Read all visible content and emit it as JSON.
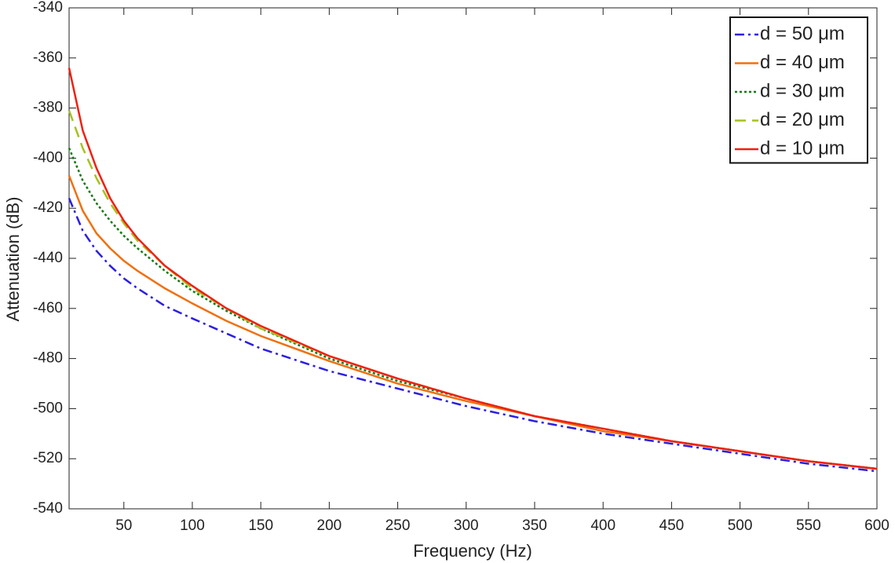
{
  "chart_data": {
    "type": "line",
    "x_label": "Frequency (Hz)",
    "y_label": "Attenuation (dB)",
    "x": [
      10,
      20,
      30,
      40,
      50,
      60,
      80,
      100,
      125,
      150,
      200,
      250,
      300,
      350,
      400,
      450,
      500,
      550,
      600
    ],
    "series": [
      {
        "name": "d = 50 μm",
        "color": "#2b1fe0",
        "style": "dashdot",
        "values": [
          -416,
          -429,
          -437,
          -443,
          -448,
          -452,
          -459,
          -464,
          -470,
          -476,
          -485,
          -492,
          -499,
          -505,
          -510,
          -514,
          -518,
          -522,
          -525
        ]
      },
      {
        "name": "d = 40 μm",
        "color": "#f07010",
        "style": "solid",
        "values": [
          -407,
          -421,
          -430,
          -436,
          -441,
          -445,
          -452,
          -458,
          -465,
          -471,
          -481,
          -490,
          -497,
          -503,
          -509,
          -513,
          -517,
          -521,
          -524
        ]
      },
      {
        "name": "d = 30 μm",
        "color": "#107a10",
        "style": "dotted",
        "values": [
          -396,
          -409,
          -418,
          -425,
          -431,
          -436,
          -445,
          -453,
          -461,
          -468,
          -480,
          -489,
          -496,
          -503,
          -508,
          -513,
          -517,
          -521,
          -524
        ]
      },
      {
        "name": "d = 20 μm",
        "color": "#a8c020",
        "style": "dashed",
        "values": [
          -381,
          -396,
          -408,
          -418,
          -426,
          -433,
          -443,
          -452,
          -460,
          -468,
          -479,
          -488,
          -496,
          -503,
          -508,
          -513,
          -517,
          -521,
          -524
        ]
      },
      {
        "name": "d = 10 μm",
        "color": "#f02010",
        "style": "solid",
        "values": [
          -364,
          -389,
          -404,
          -416,
          -425,
          -432,
          -443,
          -451,
          -460,
          -467,
          -479,
          -488,
          -496,
          -503,
          -508,
          -513,
          -517,
          -521,
          -524
        ]
      }
    ],
    "xlim": [
      10,
      600
    ],
    "xticks": [
      50,
      100,
      150,
      200,
      250,
      300,
      350,
      400,
      450,
      500,
      550,
      600
    ],
    "ylim": [
      -540,
      -340
    ],
    "yticks": [
      -540,
      -520,
      -500,
      -480,
      -460,
      -440,
      -420,
      -400,
      -380,
      -360,
      -340
    ],
    "grid": false,
    "legend": "top-right"
  }
}
